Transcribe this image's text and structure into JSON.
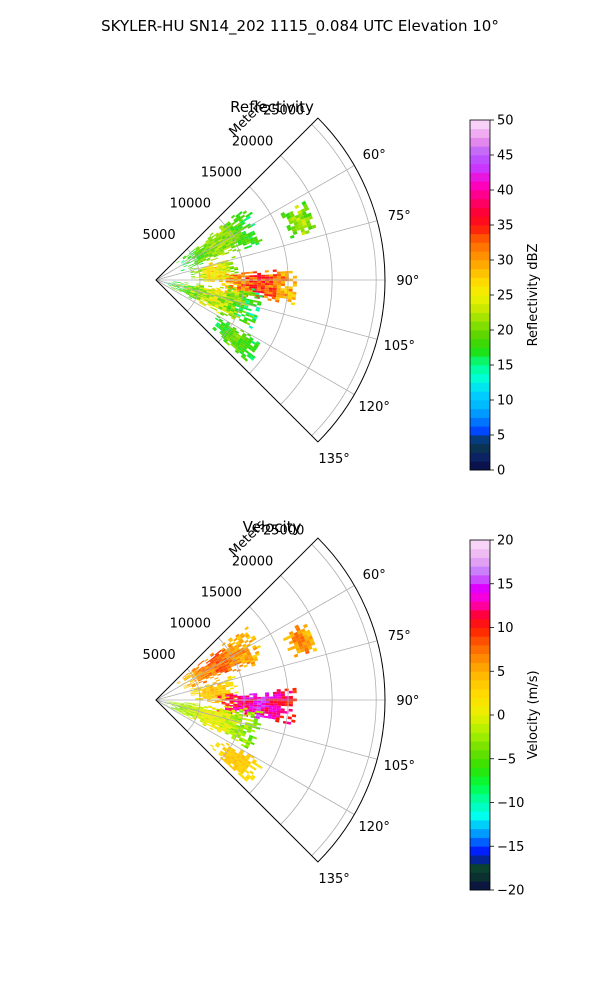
{
  "figure": {
    "suptitle": "SKYLER-HU  SN14_202  1115_0.084 UTC Elevation 10°"
  },
  "chart_data": [
    {
      "type": "heatmap",
      "title": "Reflectivity",
      "radial_label": "Meters",
      "radial_ticks": [
        5000,
        10000,
        15000,
        20000,
        25000
      ],
      "radial_tick_labels": [
        "5000",
        "10000",
        "15000",
        "20000",
        "25000"
      ],
      "rlim": [
        0,
        26000
      ],
      "azimuth_range_deg": [
        45,
        135
      ],
      "azimuth_ticks": [
        60,
        75,
        90,
        105,
        120,
        135
      ],
      "azimuth_tick_labels": [
        "60°",
        "75°",
        "90°",
        "105°",
        "120°",
        "135°"
      ],
      "grid": true,
      "colorbar": {
        "label": "Reflectivity dBZ",
        "range": [
          0,
          50
        ],
        "ticks": [
          0,
          5,
          10,
          15,
          20,
          25,
          30,
          35,
          40,
          45,
          50
        ],
        "tick_labels": [
          "0",
          "5",
          "10",
          "15",
          "20",
          "25",
          "30",
          "35",
          "40",
          "45",
          "50"
        ]
      },
      "echo_regions": [
        {
          "az_range": [
            50,
            70
          ],
          "r_range": [
            3000,
            13000
          ],
          "value_range": [
            14,
            24
          ]
        },
        {
          "az_range": [
            72,
            92
          ],
          "r_range": [
            4000,
            9000
          ],
          "value_range": [
            18,
            30
          ]
        },
        {
          "az_range": [
            85,
            100
          ],
          "r_range": [
            7000,
            16000
          ],
          "value_range": [
            24,
            38
          ]
        },
        {
          "az_range": [
            95,
            118
          ],
          "r_range": [
            1000,
            12000
          ],
          "value_range": [
            12,
            28
          ]
        },
        {
          "az_range": [
            120,
            132
          ],
          "r_range": [
            8000,
            14000
          ],
          "value_range": [
            14,
            22
          ]
        },
        {
          "az_range": [
            62,
            72
          ],
          "r_range": [
            16000,
            19000
          ],
          "value_range": [
            16,
            25
          ]
        }
      ]
    },
    {
      "type": "heatmap",
      "title": "Velocity",
      "radial_label": "Meters",
      "radial_ticks": [
        5000,
        10000,
        15000,
        20000,
        25000
      ],
      "radial_tick_labels": [
        "5000",
        "10000",
        "15000",
        "20000",
        "25000"
      ],
      "rlim": [
        0,
        26000
      ],
      "azimuth_range_deg": [
        45,
        135
      ],
      "azimuth_ticks": [
        60,
        75,
        90,
        105,
        120,
        135
      ],
      "azimuth_tick_labels": [
        "60°",
        "75°",
        "90°",
        "105°",
        "120°",
        "135°"
      ],
      "grid": true,
      "colorbar": {
        "label": "Velocity (m/s)",
        "range": [
          -20,
          20
        ],
        "ticks": [
          -20,
          -15,
          -10,
          -5,
          0,
          5,
          10,
          15,
          20
        ],
        "tick_labels": [
          "−20",
          "−15",
          "−10",
          "−5",
          "0",
          "5",
          "10",
          "15",
          "20"
        ]
      },
      "echo_regions": [
        {
          "az_range": [
            50,
            70
          ],
          "r_range": [
            3000,
            13000
          ],
          "value_range": [
            2,
            10
          ]
        },
        {
          "az_range": [
            72,
            92
          ],
          "r_range": [
            4000,
            9000
          ],
          "value_range": [
            0,
            6
          ]
        },
        {
          "az_range": [
            85,
            100
          ],
          "r_range": [
            7000,
            16000
          ],
          "value_range": [
            8,
            16
          ]
        },
        {
          "az_range": [
            95,
            118
          ],
          "r_range": [
            1000,
            12000
          ],
          "value_range": [
            -6,
            3
          ]
        },
        {
          "az_range": [
            120,
            132
          ],
          "r_range": [
            8000,
            14000
          ],
          "value_range": [
            1,
            5
          ]
        },
        {
          "az_range": [
            62,
            72
          ],
          "r_range": [
            16000,
            19000
          ],
          "value_range": [
            2,
            9
          ]
        }
      ]
    }
  ]
}
